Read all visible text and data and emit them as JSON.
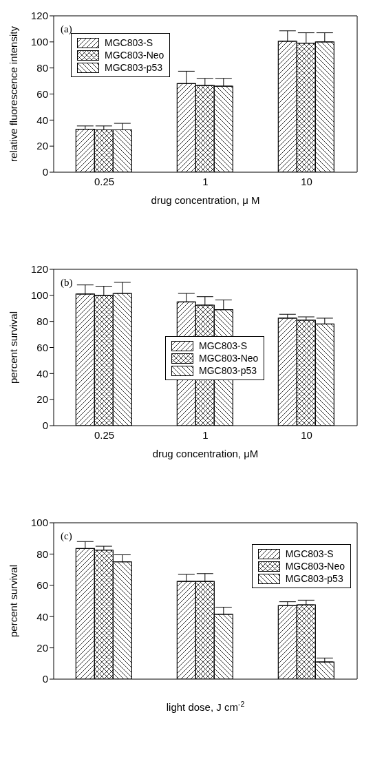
{
  "chart_data": [
    {
      "type": "bar",
      "annotations": [
        "(a)"
      ],
      "xlabel": "drug concentration, μ M",
      "ylabel": "relative fluorescence intensity",
      "categories": [
        "0.25",
        "1",
        "10"
      ],
      "ylim": [
        0,
        120
      ],
      "yticks": [
        0,
        20,
        40,
        60,
        80,
        100,
        120
      ],
      "legend": "top left",
      "series": [
        {
          "name": "MGC803-S",
          "color": "#000000",
          "values": [
            33,
            68,
            100.5
          ],
          "errors": [
            [
              33,
              35.5
            ],
            [
              68,
              77.5
            ],
            [
              100.5,
              108.5
            ]
          ]
        },
        {
          "name": "MGC803-Neo",
          "color": "#000000",
          "values": [
            32.5,
            66.5,
            99
          ],
          "errors": [
            [
              32.5,
              35.5
            ],
            [
              66.5,
              72
            ],
            [
              99,
              107
            ]
          ]
        },
        {
          "name": "MGC803-p53",
          "color": "#000000",
          "values": [
            32.5,
            66,
            100
          ],
          "errors": [
            [
              32.5,
              37.5
            ],
            [
              66,
              72
            ],
            [
              100,
              107
            ]
          ]
        }
      ]
    },
    {
      "type": "bar",
      "annotations": [
        "(b)"
      ],
      "xlabel": "drug concentration, μM",
      "ylabel": "percent survival",
      "categories": [
        "0.25",
        "1",
        "10"
      ],
      "ylim": [
        0,
        120
      ],
      "yticks": [
        0,
        20,
        40,
        60,
        80,
        100,
        120
      ],
      "legend": "center",
      "series": [
        {
          "name": "MGC803-S",
          "color": "#000000",
          "values": [
            101,
            95,
            82.5
          ],
          "errors": [
            [
              101,
              108
            ],
            [
              95,
              101.5
            ],
            [
              82.5,
              85.5
            ]
          ]
        },
        {
          "name": "MGC803-Neo",
          "color": "#000000",
          "values": [
            100,
            92.5,
            81
          ],
          "errors": [
            [
              100,
              107
            ],
            [
              92.5,
              99
            ],
            [
              81,
              83.5
            ]
          ]
        },
        {
          "name": "MGC803-p53",
          "color": "#000000",
          "values": [
            101.5,
            89,
            78
          ],
          "errors": [
            [
              101.5,
              110
            ],
            [
              89,
              96.5
            ],
            [
              78,
              82.5
            ]
          ]
        }
      ]
    },
    {
      "type": "bar",
      "annotations": [
        "(c)"
      ],
      "xlabel": "light dose, J cm$^{-2}$",
      "ylabel": "percent survival",
      "categories": [
        null,
        null,
        null
      ],
      "ylim": [
        0,
        100
      ],
      "yticks": [
        0,
        20,
        40,
        60,
        80,
        100
      ],
      "legend": "top right",
      "series": [
        {
          "name": "MGC803-S",
          "color": "#000000",
          "values": [
            83.5,
            62.5,
            47
          ],
          "errors": [
            [
              83.5,
              88
            ],
            [
              62.5,
              67
            ],
            [
              47,
              49.5
            ]
          ]
        },
        {
          "name": "MGC803-Neo",
          "color": "#000000",
          "values": [
            82.5,
            62.5,
            47.5
          ],
          "errors": [
            [
              82.5,
              85
            ],
            [
              62.5,
              67.5
            ],
            [
              47.5,
              50.5
            ]
          ]
        },
        {
          "name": "MGC803-p53",
          "color": "#000000",
          "values": [
            75,
            41.5,
            11
          ],
          "errors": [
            [
              75,
              79.5
            ],
            [
              41.5,
              46
            ],
            [
              11,
              13.5
            ]
          ]
        }
      ]
    }
  ]
}
